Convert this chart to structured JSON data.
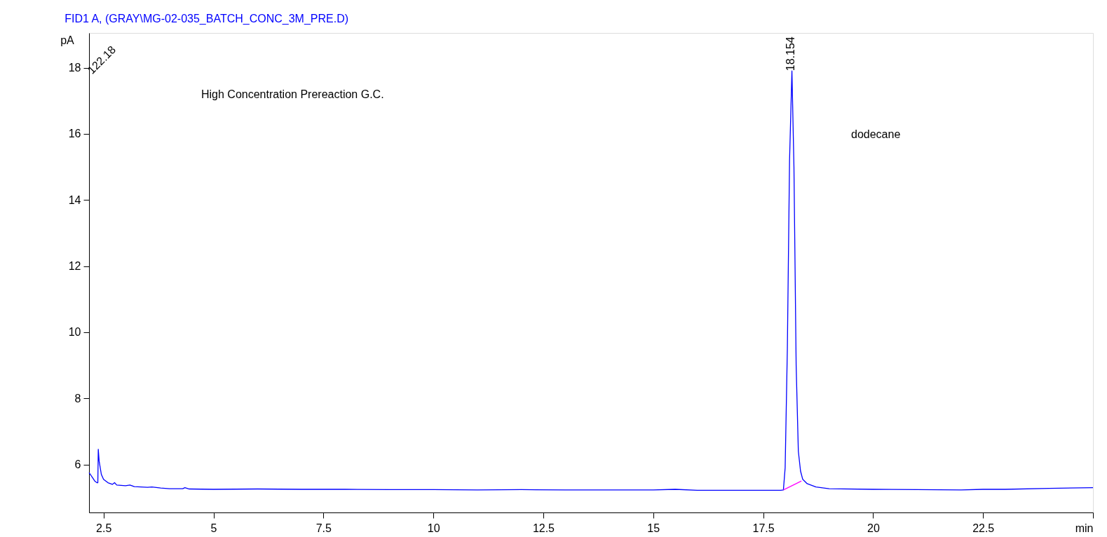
{
  "chart_data": {
    "type": "line",
    "title": "FID1 A,  (GRAY\\MG-02-035_BATCH_CONC_3M_PRE.D)",
    "ylabel": "pA",
    "xlim": [
      2.17,
      25
    ],
    "xticks": [
      2.5,
      {
        "value": 5,
        "label": "5"
      },
      7.5,
      {
        "value": 10,
        "label": "10"
      },
      12.5,
      {
        "value": 15,
        "label": "15"
      },
      17.5,
      {
        "value": 20,
        "label": "20"
      },
      22.5,
      {
        "value": 25,
        "label": "min"
      }
    ],
    "ylim": [
      4.55,
      19.05
    ],
    "yticks": [
      6,
      8,
      10,
      12,
      14,
      16,
      18
    ],
    "grid": false,
    "line_style": "solid",
    "marker": "none",
    "annotations": [
      "122.18",
      {
        "text": "18.154",
        "x": 18.154,
        "y": 17.9
      },
      "High Concentration Prereaction G.C.",
      "dodecane"
    ],
    "series": [
      {
        "color": "#0000ff",
        "x": [
          2.17,
          2.2,
          2.25,
          2.3,
          2.35,
          2.37,
          2.38,
          2.4,
          2.45,
          2.5,
          2.6,
          2.7,
          2.75,
          2.8,
          3.0,
          3.1,
          3.2,
          3.5,
          3.6,
          3.8,
          4.0,
          4.3,
          4.35,
          4.45,
          5,
          6,
          7,
          8,
          9,
          10,
          11,
          12,
          13,
          14,
          15,
          15.5,
          16,
          17,
          17.9,
          17.96,
          18.0,
          18.05,
          18.1,
          18.154,
          18.2,
          18.25,
          18.3,
          18.35,
          18.4,
          18.5,
          18.7,
          19,
          20,
          21,
          22,
          22.5,
          23,
          24,
          25
        ],
        "values": [
          5.75,
          5.7,
          5.6,
          5.5,
          5.45,
          5.45,
          6.46,
          6.1,
          5.7,
          5.55,
          5.45,
          5.4,
          5.45,
          5.38,
          5.36,
          5.38,
          5.33,
          5.31,
          5.32,
          5.29,
          5.27,
          5.27,
          5.3,
          5.26,
          5.25,
          5.26,
          5.25,
          5.25,
          5.24,
          5.24,
          5.23,
          5.24,
          5.23,
          5.23,
          5.23,
          5.25,
          5.22,
          5.22,
          5.22,
          5.23,
          5.9,
          9.5,
          15.2,
          17.9,
          15.0,
          9.0,
          6.4,
          5.8,
          5.55,
          5.42,
          5.32,
          5.27,
          5.25,
          5.24,
          5.23,
          5.25,
          5.25,
          5.28,
          5.3
        ]
      },
      {
        "color": "#ff00ff",
        "x": [
          17.96,
          18.37
        ],
        "values": [
          5.23,
          5.5
        ]
      }
    ]
  }
}
